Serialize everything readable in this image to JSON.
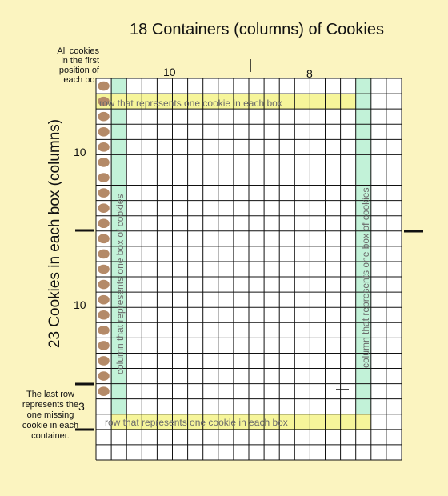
{
  "title": "18 Containers (columns) of Cookies",
  "vertical_title": "23 Cookies in each box (columns)",
  "top_note": "All cookies in the first position of each box",
  "bottom_note": "The last row represents the one missing cookie in each container.",
  "top_count_left": "10",
  "top_count_right": "8",
  "side_count_upper": "10",
  "side_count_lower": "10",
  "side_count_bottom": "3",
  "row_highlight_label": "row that represents one cookie in each box",
  "column_highlight_label": "column that represents one box of cookies",
  "grid": {
    "columns": 20,
    "rows": 25
  },
  "colors": {
    "background": "#fbf4c0",
    "grid_fill": "#ffffff",
    "grid_lines": "#111111",
    "cookie": "#b48a68",
    "row_highlight": "#f6f59a",
    "column_highlight": "#c2f2d8",
    "highlight_text": "#6b6b6b"
  },
  "icons": {
    "cookie": "cookie-icon"
  }
}
